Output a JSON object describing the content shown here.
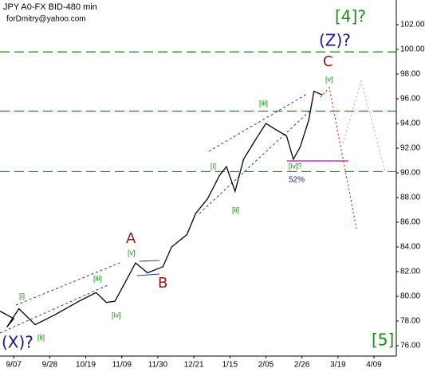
{
  "chart_data": {
    "type": "line",
    "title": "JPY A0-FX BID-480 min",
    "subtitle": "forDmitry@yahoo.com",
    "x": [
      -8,
      0,
      -4,
      3,
      12.5,
      24,
      38,
      48,
      54,
      59,
      66,
      71,
      78,
      87,
      92,
      101,
      106,
      113,
      120,
      124,
      129,
      134,
      141,
      147,
      154,
      159,
      163,
      167,
      172,
      175,
      180
    ],
    "series": [
      {
        "name": "JPY A0-FX",
        "color": "#000000",
        "values": [
          78.8,
          78.2,
          77.5,
          79.0,
          77.7,
          78.5,
          79.6,
          80.3,
          79.5,
          79.6,
          81.4,
          82.7,
          81.9,
          82.4,
          84.0,
          85.0,
          86.7,
          87.9,
          89.8,
          90.5,
          88.5,
          91.1,
          92.7,
          94.0,
          93.4,
          93.0,
          91.1,
          92.1,
          94.3,
          96.6,
          96.3
        ]
      }
    ],
    "xlim": [
      -8,
      223
    ],
    "xticks": [
      {
        "value": 0,
        "label": "9/07"
      },
      {
        "value": 21,
        "label": "9/28"
      },
      {
        "value": 42,
        "label": "10/19"
      },
      {
        "value": 63,
        "label": "11/09"
      },
      {
        "value": 84,
        "label": "11/30"
      },
      {
        "value": 105,
        "label": "12/21"
      },
      {
        "value": 126,
        "label": "1/15"
      },
      {
        "value": 147,
        "label": "2/05"
      },
      {
        "value": 168,
        "label": "2/26"
      },
      {
        "value": 189,
        "label": "3/19"
      },
      {
        "value": 210,
        "label": "4/09"
      }
    ],
    "ylim": [
      75.16,
      104
    ],
    "yticks": [
      {
        "value": 76,
        "label": "76.00"
      },
      {
        "value": 78,
        "label": "78.00"
      },
      {
        "value": 80,
        "label": "80.00"
      },
      {
        "value": 82,
        "label": "82.00"
      },
      {
        "value": 84,
        "label": "84.00"
      },
      {
        "value": 86,
        "label": "86.00"
      },
      {
        "value": 88,
        "label": "88.00"
      },
      {
        "value": 90,
        "label": "90.00"
      },
      {
        "value": 92,
        "label": "92.00"
      },
      {
        "value": 94,
        "label": "94.00"
      },
      {
        "value": 96,
        "label": "96.00"
      },
      {
        "value": 98,
        "label": "98.00"
      },
      {
        "value": 100,
        "label": "100.00"
      },
      {
        "value": 102,
        "label": "102.00"
      }
    ],
    "levels": [
      99.8,
      95.0,
      90.1
    ],
    "level_color": "#1a8a1a",
    "annotations": [
      "[4]?",
      "(Z)?",
      "C",
      "[v]",
      "[iii]",
      "[i]",
      "[iv]?",
      "52%",
      "[ii]",
      "A",
      "[v]",
      "B",
      "[iii]",
      "[i]",
      "[iv]",
      "(X)?",
      "[ii]",
      "[5]"
    ]
  }
}
